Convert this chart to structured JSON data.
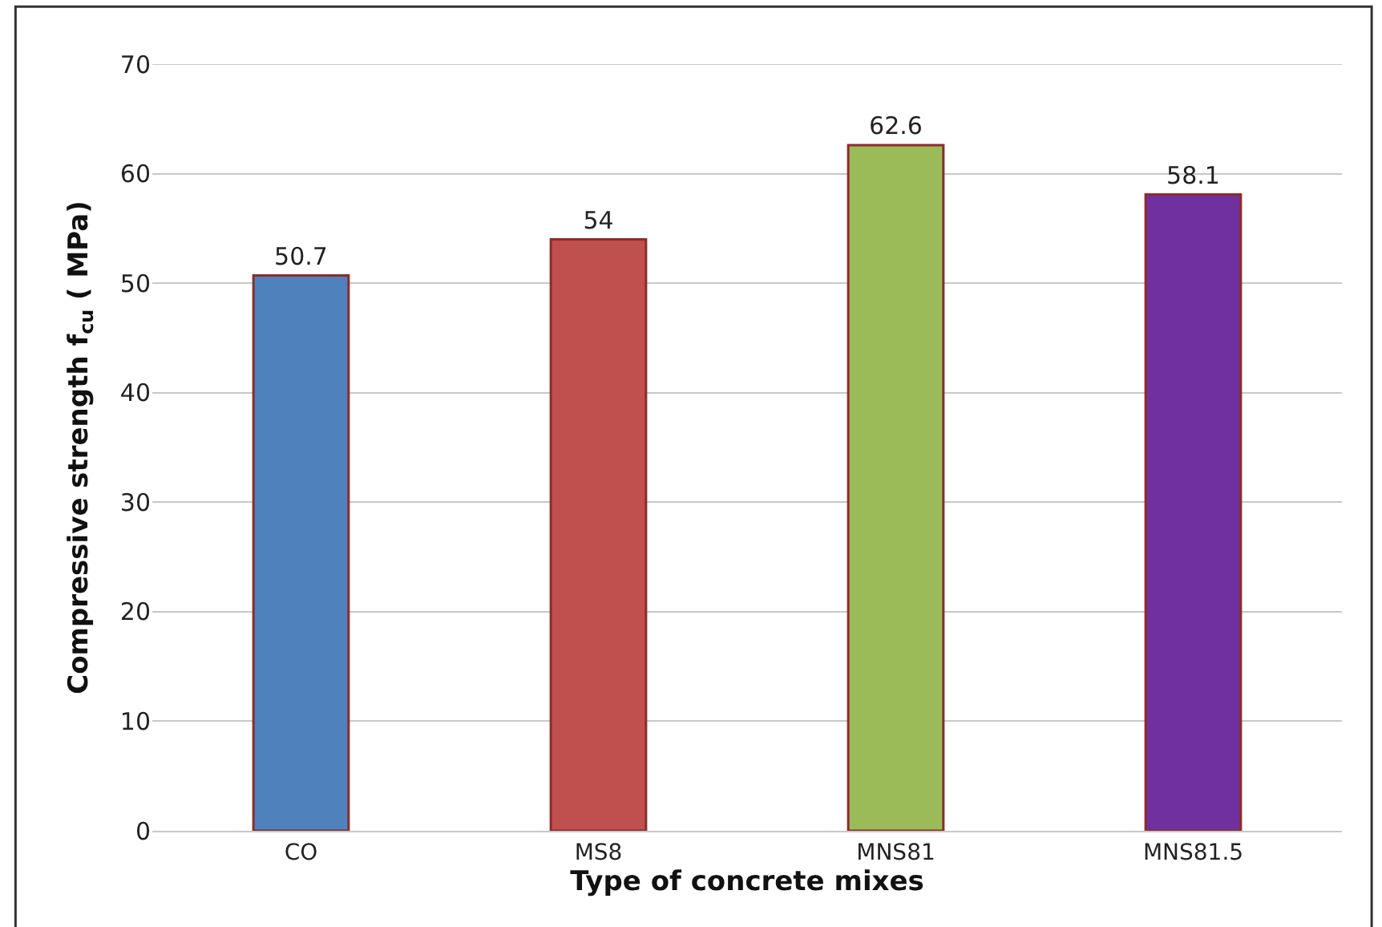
{
  "chart_data": {
    "type": "bar",
    "xlabel": "Type of concrete mixes",
    "ylabel": "Compressive strength f$_{cu}$ ( MPa)",
    "categories": [
      "CO",
      "MS8",
      "MNS81",
      "MNS81.5"
    ],
    "values": [
      50.7,
      54,
      62.6,
      58.1
    ],
    "colors": [
      "#4f81bd",
      "#c0504d",
      "#9bbb59",
      "#7030a0"
    ],
    "ylim": [
      0,
      70
    ],
    "yticks": [
      0,
      10,
      20,
      30,
      40,
      50,
      60,
      70
    ],
    "grid": "y",
    "data_labels": true
  }
}
